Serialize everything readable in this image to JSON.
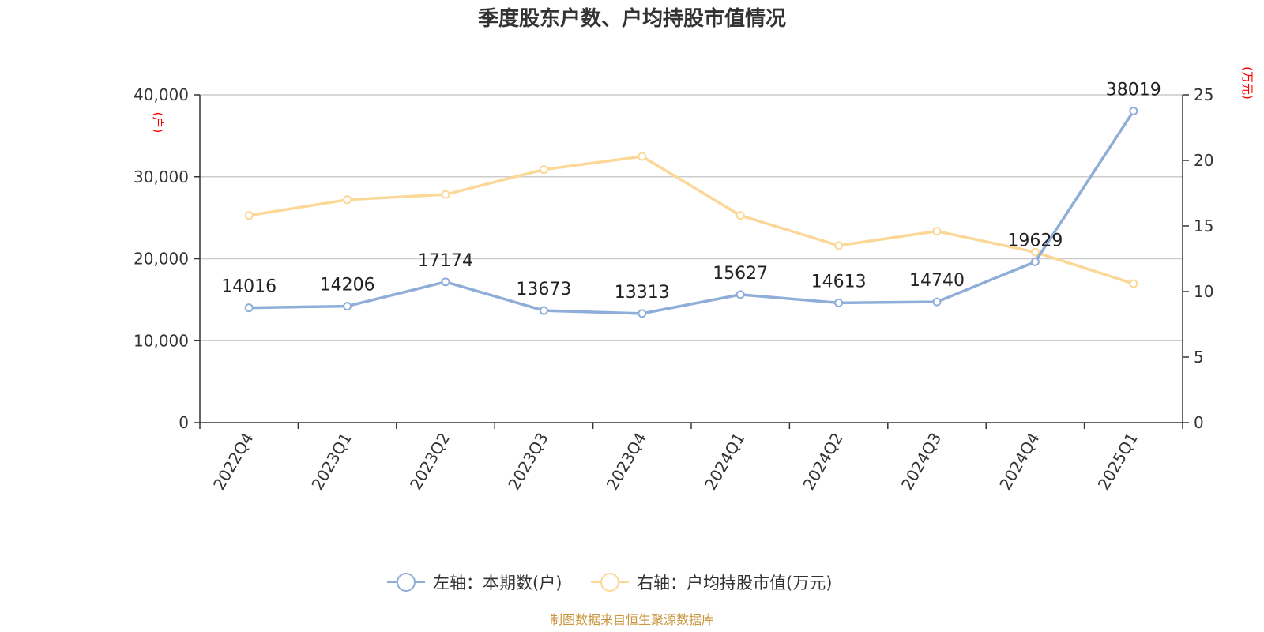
{
  "chart_data": {
    "type": "line",
    "title": "季度股东户数、户均持股市值情况",
    "categories": [
      "2022Q4",
      "2023Q1",
      "2023Q2",
      "2023Q3",
      "2023Q4",
      "2024Q1",
      "2024Q2",
      "2024Q3",
      "2024Q4",
      "2025Q1"
    ],
    "left_axis": {
      "unit": "(户)",
      "ylim": [
        0,
        40000
      ],
      "ticks": [
        "0",
        "10,000",
        "20,000",
        "30,000",
        "40,000"
      ]
    },
    "right_axis": {
      "unit": "(万元)",
      "ylim": [
        0,
        25
      ],
      "ticks": [
        "0",
        "5",
        "10",
        "15",
        "20",
        "25"
      ]
    },
    "series": [
      {
        "name": "左轴：本期数(户)",
        "axis": "left",
        "color": "#8eadd8",
        "values": [
          14016,
          14206,
          17174,
          13673,
          13313,
          15627,
          14613,
          14740,
          19629,
          38019
        ],
        "labels": [
          "14016",
          "14206",
          "17174",
          "13673",
          "13313",
          "15627",
          "14613",
          "14740",
          "19629",
          "38019"
        ]
      },
      {
        "name": "右轴：户均持股市值(万元)",
        "axis": "right",
        "color": "#fcd898",
        "values": [
          15.8,
          17.0,
          17.4,
          19.3,
          20.3,
          15.8,
          13.5,
          14.6,
          13.0,
          10.6
        ]
      }
    ],
    "grid": true,
    "legend_position": "bottom-center",
    "source": "制图数据来自恒生聚源数据库"
  }
}
